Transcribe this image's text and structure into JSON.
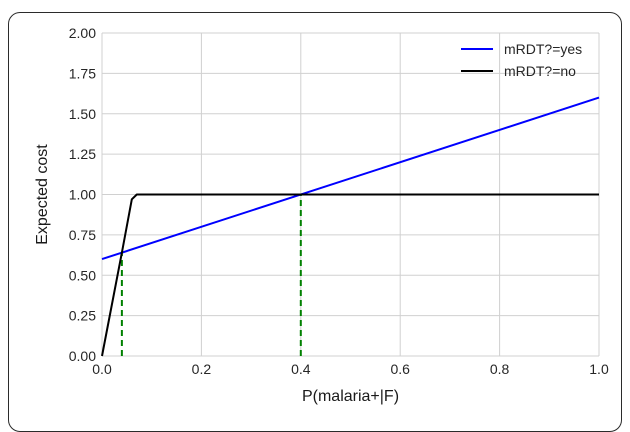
{
  "chart_data": {
    "type": "line",
    "title": "",
    "xlabel": "P(malaria+|F)",
    "ylabel": "Expected cost",
    "xlim": [
      0.0,
      1.0
    ],
    "ylim": [
      0.0,
      2.0
    ],
    "x_ticks": [
      "0.0",
      "0.2",
      "0.4",
      "0.6",
      "0.8",
      "1.0"
    ],
    "y_ticks": [
      "0.00",
      "0.25",
      "0.50",
      "0.75",
      "1.00",
      "1.25",
      "1.50",
      "1.75",
      "2.00"
    ],
    "grid": true,
    "legend_position": "top-right",
    "series": [
      {
        "name": "mRDT?=yes",
        "color": "#0000ff",
        "style": "solid",
        "x": [
          0.0,
          1.0
        ],
        "y": [
          0.6,
          1.6
        ]
      },
      {
        "name": "mRDT?=no",
        "color": "#000000",
        "style": "solid",
        "x": [
          0.0,
          0.04,
          0.06,
          0.07,
          1.0
        ],
        "y": [
          0.0,
          0.64,
          0.97,
          1.0,
          1.0
        ]
      }
    ],
    "reference_lines": [
      {
        "color": "#008000",
        "style": "dashed",
        "x": 0.04,
        "y_from": 0.0,
        "y_to": 0.64
      },
      {
        "color": "#008000",
        "style": "dashed",
        "x": 0.4,
        "y_from": 0.0,
        "y_to": 1.0
      }
    ]
  }
}
